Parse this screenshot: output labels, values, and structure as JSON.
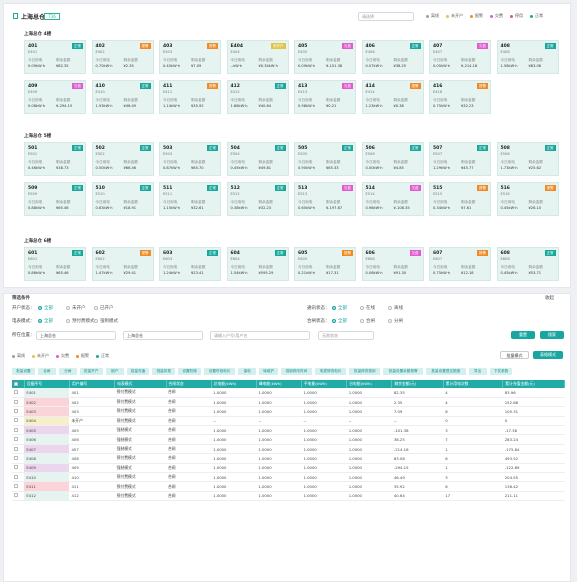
{
  "header": {
    "title": "上海总仓",
    "badge": "T36",
    "select_placeholder": "请选择",
    "legend": [
      {
        "label": "离线",
        "color": "#9aa0a6"
      },
      {
        "label": "未开户",
        "color": "#e0c54a"
      },
      {
        "label": "报警",
        "color": "#f08a24"
      },
      {
        "label": "欠费",
        "color": "#e35bd0"
      },
      {
        "label": "停用",
        "color": "#e05c5c"
      },
      {
        "label": "正常",
        "color": "#19a89b"
      }
    ]
  },
  "card_labels": {
    "today": "今日用电",
    "remain": "剩余金额"
  },
  "floors": [
    {
      "title": "上海总仓 4楼",
      "rows": [
        [
          {
            "n": "401",
            "s": "E401",
            "st": "正常",
            "c": "#19a89b",
            "a": "0.09kW·h",
            "b": "¥82.35"
          },
          {
            "n": "402",
            "s": "E402",
            "st": "报警",
            "c": "#f08a24",
            "a": "0.70kW·h",
            "b": "¥2.35"
          },
          {
            "n": "403",
            "s": "E403",
            "st": "报警",
            "c": "#f08a24",
            "a": "0.40kW·h",
            "b": "¥7.09"
          },
          {
            "n": "E404",
            "s": "E404",
            "st": "未开户",
            "c": "#e0c54a",
            "a": "--kW·h",
            "b": "¥0.34kW·h"
          },
          {
            "n": "405",
            "s": "E405",
            "st": "欠费",
            "c": "#e35bd0",
            "a": "0.09kW·h",
            "b": "¥-101.38"
          },
          {
            "n": "406",
            "s": "E406",
            "st": "正常",
            "c": "#19a89b",
            "a": "0.07kW·h",
            "b": "¥38.25"
          },
          {
            "n": "407",
            "s": "E407",
            "st": "欠费",
            "c": "#e35bd0",
            "a": "0.05kW·h",
            "b": "¥-214.16"
          },
          {
            "n": "408",
            "s": "E408",
            "st": "正常",
            "c": "#19a89b",
            "a": "1.58kW·h",
            "b": "¥83.08"
          }
        ],
        [
          {
            "n": "409",
            "s": "E409",
            "st": "欠费",
            "c": "#e35bd0",
            "a": "0.08kW·h",
            "b": "¥-294.15"
          },
          {
            "n": "410",
            "s": "E410",
            "st": "正常",
            "c": "#19a89b",
            "a": "1.93kW·h",
            "b": "¥46.49"
          },
          {
            "n": "411",
            "s": "E411",
            "st": "报警",
            "c": "#f08a24",
            "a": "1.14kW·h",
            "b": "¥35.92"
          },
          {
            "n": "412",
            "s": "E412",
            "st": "正常",
            "c": "#19a89b",
            "a": "1.86kW·h",
            "b": "¥40.64"
          },
          {
            "n": "413",
            "s": "E413",
            "st": "欠费",
            "c": "#e35bd0",
            "a": "0.98kW·h",
            "b": "¥0.21"
          },
          {
            "n": "414",
            "s": "E414",
            "st": "报警",
            "c": "#f08a24",
            "a": "1.23kW·h",
            "b": "¥0.38"
          },
          {
            "n": "416",
            "s": "E416",
            "st": "报警",
            "c": "#f08a24",
            "a": "0.75kW·h",
            "b": "¥32.23"
          }
        ]
      ]
    },
    {
      "title": "上海总仓 5楼",
      "rows": [
        [
          {
            "n": "501",
            "s": "E501",
            "st": "正常",
            "c": "#19a89b",
            "a": "0.46kW·h",
            "b": "¥38.73"
          },
          {
            "n": "502",
            "s": "E502",
            "st": "正常",
            "c": "#19a89b",
            "a": "0.50kW·h",
            "b": "¥66.46"
          },
          {
            "n": "503",
            "s": "E503",
            "st": "正常",
            "c": "#19a89b",
            "a": "0.87kW·h",
            "b": "¥65.70"
          },
          {
            "n": "504",
            "s": "E504",
            "st": "正常",
            "c": "#19a89b",
            "a": "0.45kW·h",
            "b": "¥49.81"
          },
          {
            "n": "505",
            "s": "E505",
            "st": "正常",
            "c": "#19a89b",
            "a": "0.90kW·h",
            "b": "¥65.33"
          },
          {
            "n": "506",
            "s": "E506",
            "st": "正常",
            "c": "#19a89b",
            "a": "0.00kW·h",
            "b": "¥4.85"
          },
          {
            "n": "507",
            "s": "E507",
            "st": "正常",
            "c": "#19a89b",
            "a": "1.29kW·h",
            "b": "¥45.77"
          },
          {
            "n": "508",
            "s": "E508",
            "st": "正常",
            "c": "#19a89b",
            "a": "1.73kW·h",
            "b": "¥25.62"
          }
        ],
        [
          {
            "n": "509",
            "s": "E509",
            "st": "正常",
            "c": "#19a89b",
            "a": "0.88kW·h",
            "b": "¥65.46"
          },
          {
            "n": "510",
            "s": "E510",
            "st": "正常",
            "c": "#19a89b",
            "a": "0.63kW·h",
            "b": "¥18.91"
          },
          {
            "n": "511",
            "s": "E511",
            "st": "正常",
            "c": "#19a89b",
            "a": "1.15kW·h",
            "b": "¥32.61"
          },
          {
            "n": "512",
            "s": "E512",
            "st": "正常",
            "c": "#19a89b",
            "a": "0.38kW·h",
            "b": "¥32.23"
          },
          {
            "n": "513",
            "s": "E513",
            "st": "欠费",
            "c": "#e35bd0",
            "a": "0.65kW·h",
            "b": "¥-197.87"
          },
          {
            "n": "514",
            "s": "E514",
            "st": "欠费",
            "c": "#e35bd0",
            "a": "0.98kW·h",
            "b": "¥-108.35"
          },
          {
            "n": "515",
            "s": "E515",
            "st": "报警",
            "c": "#f08a24",
            "a": "0.34kW·h",
            "b": "¥7.61"
          },
          {
            "n": "516",
            "s": "E516",
            "st": "报警",
            "c": "#f08a24",
            "a": "0.45kW·h",
            "b": "¥26.10"
          }
        ]
      ]
    },
    {
      "title": "上海总仓 6楼",
      "rows": [
        [
          {
            "n": "601",
            "s": "E601",
            "st": "正常",
            "c": "#19a89b",
            "a": "0.86kW·h",
            "b": "¥65.46"
          },
          {
            "n": "602",
            "s": "E602",
            "st": "报警",
            "c": "#f08a24",
            "a": "1.47kW·h",
            "b": "¥29.41"
          },
          {
            "n": "603",
            "s": "E603",
            "st": "正常",
            "c": "#19a89b",
            "a": "1.24kW·h",
            "b": "¥23.41"
          },
          {
            "n": "604",
            "s": "E604",
            "st": "正常",
            "c": "#19a89b",
            "a": "1.54kW·h",
            "b": "¥595.29"
          },
          {
            "n": "605",
            "s": "E605",
            "st": "报警",
            "c": "#f08a24",
            "a": "0.21kW·h",
            "b": "¥17.31"
          },
          {
            "n": "606",
            "s": "E606",
            "st": "欠费",
            "c": "#e35bd0",
            "a": "0.06kW·h",
            "b": "¥91.30"
          },
          {
            "n": "607",
            "s": "E607",
            "st": "报警",
            "c": "#f08a24",
            "a": "0.75kW·h",
            "b": "¥12.18"
          },
          {
            "n": "608",
            "s": "E608",
            "st": "正常",
            "c": "#19a89b",
            "a": "0.45kW·h",
            "b": "¥53.71"
          }
        ]
      ]
    }
  ],
  "filter": {
    "title": "筛选条件",
    "collapse": "收起",
    "open_label": "开户状态：",
    "open_opts": [
      "全部",
      "未开户",
      "已开户"
    ],
    "comm_label": "通讯状态：",
    "comm_opts": [
      "全部",
      "在线",
      "离线"
    ],
    "mode_label": "电表模式：",
    "mode_opts": [
      "全部",
      "预付费模式",
      "强制模式"
    ],
    "gate_label": "合闸状态：",
    "gate_opts": [
      "全部",
      "合闸",
      "分闸"
    ],
    "loc_label": "所在位置：",
    "loc1": "上海总仓",
    "loc2": "上海总仓",
    "keyword_ph": "请输入户号/用户名",
    "state_ph": "无限状态",
    "reset": "重置",
    "search": "搜索",
    "legend2": [
      "离线",
      "未开户",
      "欠费",
      "报警",
      "正常"
    ],
    "batch": "批量模式",
    "export": "表格模式",
    "toolbar": [
      "批量设置",
      "合闸",
      "分闸",
      "批量开户",
      "销户",
      "批量充值",
      "批量扣费",
      "设置阶梯",
      "设置时段电价",
      "保电",
      "转维护",
      "强制修改时间",
      "电表修改电价",
      "批量修改费用",
      "批量设置余额报警",
      "批量设置透支额度",
      "导出",
      "下发参数"
    ]
  },
  "table": {
    "headers": [
      "",
      "设备序号",
      "用户编号",
      "电表模式",
      "合闸状态",
      "总电能(kWh)",
      "峰电能(kWh)",
      "平电能(kWh)",
      "谷电能(kWh)",
      "剩余金额(元)",
      "累计用电次数",
      "累计充值金额(元)"
    ],
    "rows": [
      [
        "E401",
        "401",
        "预付费模式",
        "合闸",
        "1.0000",
        "1.0000",
        "1.0000",
        "1.0000",
        "82.35",
        "4",
        "83.96"
      ],
      [
        "E402",
        "402",
        "预付费模式",
        "合闸",
        "1.0000",
        "1.0000",
        "1.0000",
        "1.0000",
        "2.35",
        "4",
        "152.88"
      ],
      [
        "E403",
        "403",
        "预付费模式",
        "合闸",
        "1.0000",
        "1.0000",
        "1.0000",
        "1.0000",
        "7.09",
        "6",
        "105.31"
      ],
      [
        "E404",
        "未开户",
        "预付费模式",
        "合闸",
        "--",
        "--",
        "--",
        "--",
        "--",
        "0",
        "0"
      ],
      [
        "E405",
        "405",
        "强制模式",
        "合闸",
        "1.0000",
        "1.0000",
        "1.0000",
        "1.0000",
        "-101.38",
        "3",
        "-17.38"
      ],
      [
        "E406",
        "406",
        "强制模式",
        "合闸",
        "1.0000",
        "1.0000",
        "1.0000",
        "1.0000",
        "38.25",
        "7",
        "283.24"
      ],
      [
        "E407",
        "407",
        "强制模式",
        "合闸",
        "1.0000",
        "1.0000",
        "1.0000",
        "1.0000",
        "-214.16",
        "1",
        "-175.84"
      ],
      [
        "E408",
        "408",
        "预付费模式",
        "合闸",
        "1.0000",
        "1.0000",
        "1.0000",
        "1.0000",
        "83.08",
        "6",
        "493.52"
      ],
      [
        "E409",
        "409",
        "强制模式",
        "合闸",
        "1.0000",
        "1.0000",
        "1.0000",
        "1.0000",
        "-294.15",
        "1",
        "-122.89"
      ],
      [
        "E410",
        "410",
        "预付费模式",
        "合闸",
        "1.0000",
        "1.0000",
        "1.0000",
        "1.0000",
        "46.49",
        "3",
        "204.55"
      ],
      [
        "E411",
        "411",
        "预付费模式",
        "合闸",
        "1.0000",
        "1.0000",
        "1.0000",
        "1.0000",
        "35.92",
        "6",
        "136.42"
      ],
      [
        "E412",
        "412",
        "预付费模式",
        "合闸",
        "1.0000",
        "1.0000",
        "1.0000",
        "1.0000",
        "40.64",
        "17",
        "211.11"
      ]
    ],
    "row_colors": [
      "#e5f3f1",
      "#fbd4da",
      "#fbd4da",
      "#f6efc7",
      "#ecd6ee",
      "#e5f3f1",
      "#ecd6ee",
      "#e5f3f1",
      "#ecd6ee",
      "#e5f3f1",
      "#fbd4da",
      "#e5f3f1"
    ]
  }
}
